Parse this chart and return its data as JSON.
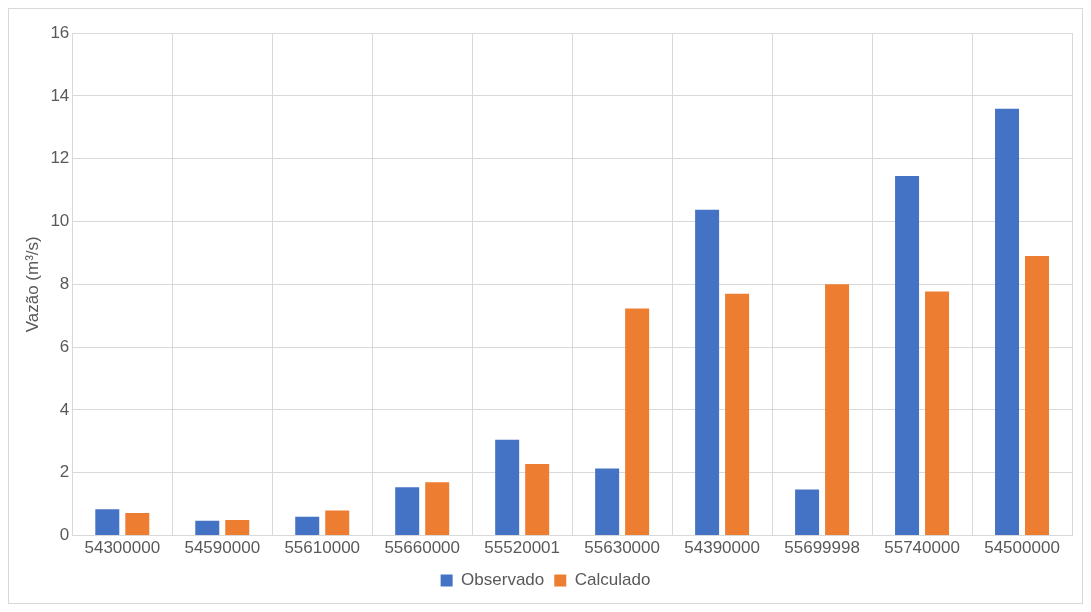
{
  "chart_data": {
    "type": "bar",
    "ylabel": "Vazão (m³/s)",
    "categories": [
      "54300000",
      "54590000",
      "55610000",
      "55660000",
      "55520001",
      "55630000",
      "54390000",
      "55699998",
      "55740000",
      "54500000"
    ],
    "series": [
      {
        "name": "Observado",
        "color": "#4472c4",
        "values": [
          0.84,
          0.47,
          0.6,
          1.54,
          3.05,
          2.14,
          10.37,
          1.47,
          11.45,
          13.59
        ]
      },
      {
        "name": "Calculado",
        "color": "#ed7d31",
        "values": [
          0.72,
          0.5,
          0.8,
          1.7,
          2.28,
          7.23,
          7.7,
          8.0,
          7.77,
          8.9
        ]
      }
    ],
    "ylim": [
      0,
      16
    ],
    "yticks": [
      0,
      2,
      4,
      6,
      8,
      10,
      12,
      14,
      16
    ],
    "grid": true,
    "legend": "bottom"
  }
}
